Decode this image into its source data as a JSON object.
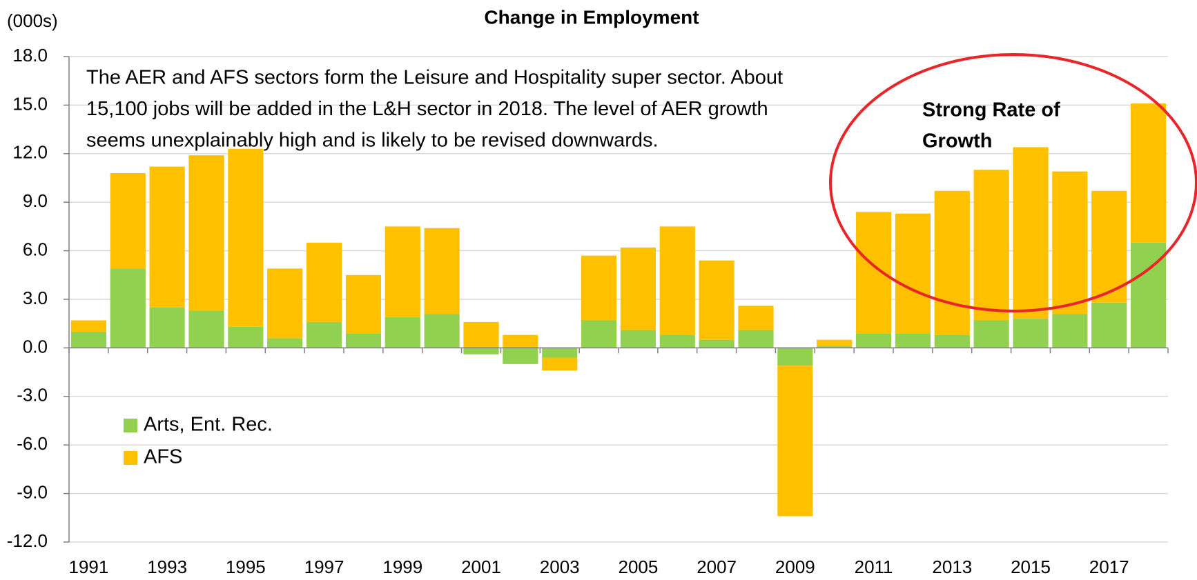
{
  "chart_data": {
    "type": "stacked_bar",
    "title": "Change in Employment",
    "y_unit_label": "(000s)",
    "annotation_lines": [
      "The AER and AFS sectors form the Leisure and Hospitality super sector. About",
      "15,100 jobs will be added in the L&H sector in 2018. The level of AER growth",
      "seems unexplainably high and is likely to be revised downwards."
    ],
    "highlight_lines": [
      "Strong Rate of",
      "Growth"
    ],
    "highlight_color": "#e8262a",
    "categories": [
      "1991",
      null,
      "1993",
      null,
      "1995",
      null,
      "1997",
      null,
      "1999",
      null,
      "2001",
      null,
      "2003",
      null,
      "2005",
      null,
      "2007",
      null,
      "2009",
      null,
      "2011",
      null,
      "2013",
      null,
      "2015",
      null,
      "2017",
      null
    ],
    "series": [
      {
        "name": "Arts, Ent. Rec.",
        "color": "#92d050",
        "values": [
          1.0,
          4.9,
          2.5,
          2.3,
          1.3,
          0.6,
          1.6,
          0.9,
          1.9,
          2.1,
          -0.4,
          -1.0,
          -0.6,
          1.7,
          1.1,
          0.8,
          0.5,
          1.1,
          -1.1,
          0.1,
          0.9,
          0.9,
          0.8,
          1.7,
          1.8,
          2.1,
          2.8,
          6.5
        ]
      },
      {
        "name": "AFS",
        "color": "#ffc000",
        "values": [
          0.7,
          5.9,
          8.7,
          9.6,
          11.0,
          4.3,
          4.9,
          3.6,
          5.6,
          5.3,
          1.6,
          0.8,
          -0.8,
          4.0,
          5.1,
          6.7,
          4.9,
          1.5,
          -9.3,
          0.4,
          7.5,
          7.4,
          8.9,
          9.3,
          10.6,
          8.8,
          6.9,
          8.6
        ]
      }
    ],
    "ylim": [
      -12,
      18
    ],
    "yticks": [
      {
        "value": -12,
        "label": "-12.0"
      },
      {
        "value": -9,
        "label": "-9.0"
      },
      {
        "value": -6,
        "label": "-6.0"
      },
      {
        "value": -3,
        "label": "-3.0"
      },
      {
        "value": 0,
        "label": "0.0"
      },
      {
        "value": 3,
        "label": "3.0"
      },
      {
        "value": 6,
        "label": "6.0"
      },
      {
        "value": 9,
        "label": "9.0"
      },
      {
        "value": 12,
        "label": "12.0"
      },
      {
        "value": 15,
        "label": "15.0"
      },
      {
        "value": 18,
        "label": "18.0"
      }
    ],
    "grid": true,
    "legend": "lower left"
  }
}
